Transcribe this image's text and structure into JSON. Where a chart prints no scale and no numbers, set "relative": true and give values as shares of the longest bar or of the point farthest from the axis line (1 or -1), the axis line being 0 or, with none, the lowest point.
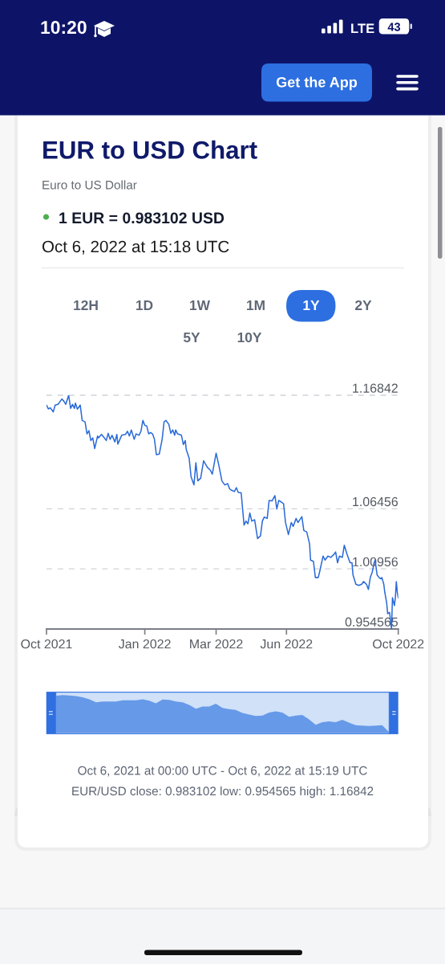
{
  "chart_data": [
    {
      "type": "line",
      "title": "EUR to USD Chart",
      "subtitle": "Euro to US Dollar",
      "annotations": [
        "10:20",
        "LTE",
        "43",
        "Get the App",
        "1 EUR = 0.983102 USD",
        "Oct 6, 2022 at 15:18 UTC",
        "12H",
        "1D",
        "1W",
        "1M",
        "1Y",
        "2Y",
        "5Y",
        "10Y"
      ],
      "x": [
        "2021-10-06",
        "2021-10-08",
        "2021-10-10",
        "2021-10-13",
        "2021-10-15",
        "2021-10-18",
        "2021-10-22",
        "2021-10-24",
        "2021-10-26",
        "2021-10-29",
        "2021-10-31",
        "2021-11-02",
        "2021-11-04",
        "2021-11-05",
        "2021-11-07",
        "2021-11-10",
        "2021-11-12",
        "2021-11-15",
        "2021-11-17",
        "2021-11-19",
        "2021-11-21",
        "2021-11-23",
        "2021-11-25",
        "2021-11-28",
        "2021-11-29",
        "2021-12-02",
        "2021-12-05",
        "2021-12-07",
        "2021-12-09",
        "2021-12-11",
        "2021-12-13",
        "2021-12-16",
        "2021-12-18",
        "2021-12-19",
        "2021-12-23",
        "2021-12-27",
        "2021-12-29",
        "2021-12-31",
        "2022-01-02",
        "2022-01-05",
        "2022-01-07",
        "2022-01-10",
        "2022-01-12",
        "2022-01-14",
        "2022-01-16",
        "2022-01-18",
        "2022-01-20",
        "2022-01-22",
        "2022-01-24",
        "2022-01-26",
        "2022-01-28",
        "2022-01-31",
        "2022-02-03",
        "2022-02-05",
        "2022-02-07",
        "2022-02-10",
        "2022-02-12",
        "2022-02-14",
        "2022-02-16",
        "2022-02-17",
        "2022-02-19",
        "2022-02-23",
        "2022-02-25",
        "2022-02-27",
        "2022-02-28",
        "2022-03-03",
        "2022-03-05",
        "2022-03-08",
        "2022-03-10",
        "2022-03-12",
        "2022-03-15",
        "2022-03-18",
        "2022-03-22",
        "2022-03-25",
        "2022-03-27",
        "2022-03-31",
        "2022-04-03",
        "2022-04-06",
        "2022-04-09",
        "2022-04-12",
        "2022-04-14",
        "2022-04-16",
        "2022-04-19",
        "2022-04-21",
        "2022-04-23",
        "2022-04-26",
        "2022-04-29",
        "2022-05-01",
        "2022-05-03",
        "2022-05-05",
        "2022-05-07",
        "2022-05-10",
        "2022-05-13",
        "2022-05-16",
        "2022-05-18",
        "2022-05-20",
        "2022-05-23",
        "2022-05-25",
        "2022-05-28",
        "2022-05-31",
        "2022-06-02",
        "2022-06-04",
        "2022-06-07",
        "2022-06-09",
        "2022-06-11",
        "2022-06-14",
        "2022-06-17",
        "2022-06-19",
        "2022-06-22",
        "2022-06-24",
        "2022-06-28",
        "2022-06-30",
        "2022-07-03",
        "2022-07-06",
        "2022-07-07",
        "2022-07-10",
        "2022-07-12",
        "2022-07-15",
        "2022-07-17",
        "2022-07-20",
        "2022-07-22",
        "2022-07-25",
        "2022-07-28",
        "2022-07-31",
        "2022-08-02",
        "2022-08-04",
        "2022-08-06",
        "2022-08-09",
        "2022-08-11",
        "2022-08-14",
        "2022-08-17",
        "2022-08-19",
        "2022-08-20",
        "2022-08-23",
        "2022-08-26",
        "2022-08-29",
        "2022-08-31",
        "2022-09-03",
        "2022-09-05",
        "2022-09-07",
        "2022-09-09",
        "2022-09-11",
        "2022-09-12",
        "2022-09-14",
        "2022-09-16",
        "2022-09-18",
        "2022-09-19",
        "2022-09-21",
        "2022-09-22",
        "2022-09-24",
        "2022-09-25",
        "2022-09-27",
        "2022-09-29",
        "2022-09-30",
        "2022-10-02",
        "2022-10-03",
        "2022-10-04",
        "2022-10-05",
        "2022-10-06"
      ],
      "series": [
        {
          "color": "#2a6ad8",
          "values": [
            1.1594,
            1.1559,
            1.1569,
            1.1532,
            1.1594,
            1.1601,
            1.165,
            1.163,
            1.1601,
            1.16842,
            1.1564,
            1.1601,
            1.1564,
            1.1613,
            1.1557,
            1.1594,
            1.1454,
            1.1441,
            1.1331,
            1.136,
            1.127,
            1.1294,
            1.1196,
            1.1311,
            1.1294,
            1.1326,
            1.1294,
            1.127,
            1.1336,
            1.1281,
            1.1318,
            1.1257,
            1.1326,
            1.1237,
            1.1318,
            1.1326,
            1.1355,
            1.1311,
            1.1367,
            1.1281,
            1.1331,
            1.1318,
            1.1355,
            1.1454,
            1.1409,
            1.1404,
            1.1331,
            1.1343,
            1.1331,
            1.1281,
            1.1141,
            1.1146,
            1.1281,
            1.1441,
            1.1454,
            1.1417,
            1.1336,
            1.1367,
            1.1318,
            1.1367,
            1.1331,
            1.1318,
            1.1233,
            1.127,
            1.1188,
            1.111,
            1.0938,
            1.0864,
            1.1066,
            1.0901,
            1.0926,
            1.1085,
            1.1024,
            1.0999,
            1.0962,
            1.1154,
            1.1036,
            1.0901,
            1.0864,
            1.0876,
            1.0828,
            1.0815,
            1.0803,
            1.0839,
            1.0795,
            1.0791,
            1.0496,
            1.0533,
            1.0508,
            1.0607,
            1.0533,
            1.0545,
            1.0373,
            1.0397,
            1.0533,
            1.057,
            1.0557,
            1.0722,
            1.0717,
            1.0766,
            1.0643,
            1.0722,
            1.0705,
            1.0692,
            1.052,
            1.041,
            1.052,
            1.0484,
            1.0557,
            1.052,
            1.0574,
            1.0447,
            1.0434,
            1.0324,
            1.0176,
            1.0165,
            1.0017,
            1.0017,
            1.0091,
            1.0213,
            1.0176,
            1.0213,
            1.0201,
            1.0226,
            1.025,
            1.0152,
            1.0213,
            1.0201,
            1.0312,
            1.0226,
            1.0152,
            1.0152,
            1.0042,
            0.9955,
            0.9944,
            0.9955,
            0.998,
            0.9955,
            0.9907,
            1.0017,
            1.0066,
            1.0152,
            1.0176,
            1.0042,
            1.0017,
            1.0005,
            1.0017,
            0.9955,
            0.9882,
            0.9784,
            0.9686,
            0.9698,
            0.954565,
            0.9833,
            0.976,
            0.9833,
            0.998,
            0.9882,
            0.983102
          ]
        }
      ],
      "xlim": [
        "2021-10-06",
        "2022-10-06"
      ],
      "xticks": [
        {
          "value": "2021-10-06",
          "label": "Oct 2021"
        },
        {
          "value": "2022-01-16",
          "label": "Jan 2022"
        },
        {
          "value": "2022-03-31",
          "label": "Mar 2022"
        },
        {
          "value": "2022-06-12",
          "label": "Jun 2022"
        },
        {
          "value": "2022-10-06",
          "label": "Oct 2022"
        }
      ],
      "ylim": [
        0.954565,
        1.16842
      ],
      "yticks": [
        0.954565,
        1.00956,
        1.06456,
        1.16842
      ],
      "grid": "y"
    },
    {
      "type": "area",
      "relative": true,
      "categories": [
        null,
        null,
        null,
        null,
        null,
        null,
        null,
        null,
        null,
        null,
        null,
        null,
        null,
        null,
        null,
        null,
        null,
        null,
        null,
        null,
        null,
        null,
        null,
        null,
        null,
        null,
        null,
        null,
        null,
        null,
        null,
        null,
        null,
        null,
        null,
        null,
        null,
        null,
        null,
        null,
        null,
        null,
        null,
        null,
        null,
        null,
        null,
        null,
        null,
        null,
        null
      ],
      "series": [
        {
          "color": "#6699e8",
          "values": [
            0.98,
            1.0,
            0.99,
            0.97,
            0.94,
            0.89,
            0.81,
            0.83,
            0.83,
            0.83,
            0.86,
            0.86,
            0.86,
            0.89,
            0.85,
            0.78,
            0.88,
            0.87,
            0.83,
            0.81,
            0.74,
            0.64,
            0.7,
            0.7,
            0.77,
            0.66,
            0.63,
            0.61,
            0.53,
            0.49,
            0.45,
            0.46,
            0.54,
            0.57,
            0.54,
            0.43,
            0.46,
            0.48,
            0.36,
            0.22,
            0.29,
            0.31,
            0.29,
            0.35,
            0.28,
            0.21,
            0.2,
            0.19,
            0.2,
            0.21,
            0.03
          ]
        }
      ],
      "annotations": [
        "Oct 6, 2021 at 00:00 UTC - Oct 6, 2022 at 15:19 UTC",
        "EUR/USD close: 0.983102 low: 0.954565 high: 1.16842"
      ]
    }
  ]
}
